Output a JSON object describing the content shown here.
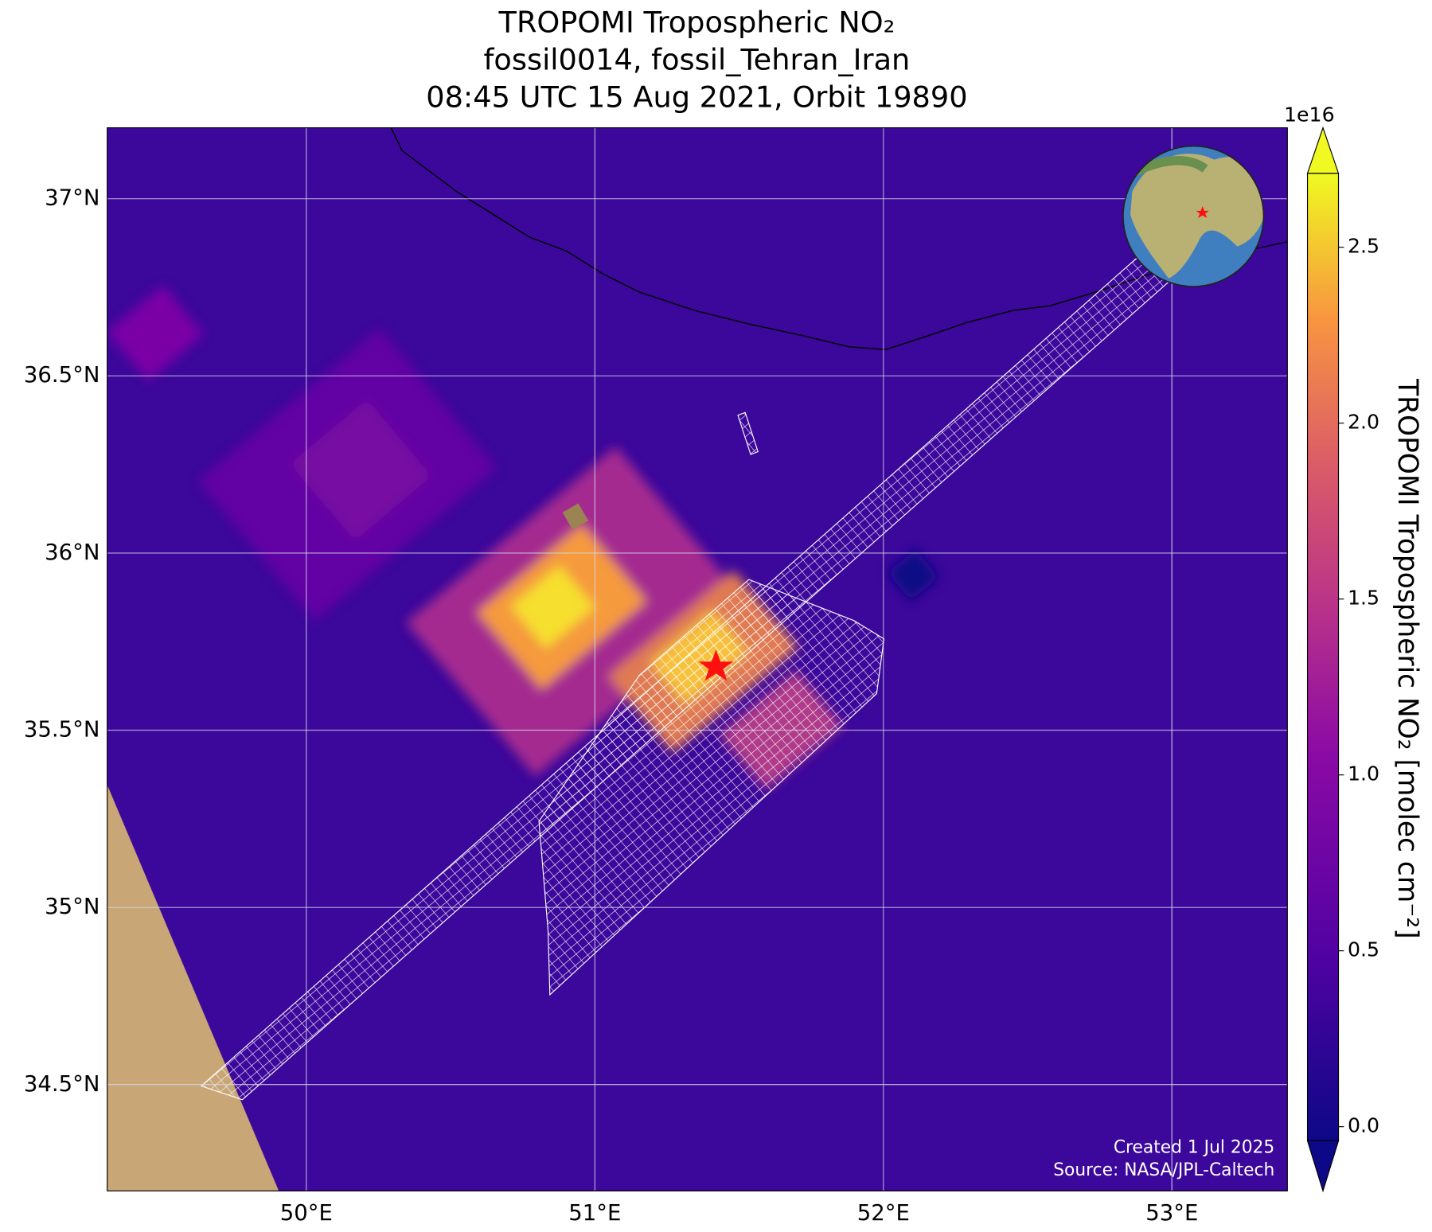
{
  "map": {
    "title": [
      "TROPOMI Tropospheric NO₂",
      "fossil0014, fossil_Tehran_Iran",
      "08:45 UTC 15 Aug 2021, Orbit 19890"
    ],
    "xlim": [
      49.31,
      53.4
    ],
    "ylim": [
      34.2,
      37.2
    ],
    "xticks": [
      {
        "value": 50,
        "label": "50°E"
      },
      {
        "value": 51,
        "label": "51°E"
      },
      {
        "value": 52,
        "label": "52°E"
      },
      {
        "value": 53,
        "label": "53°E"
      }
    ],
    "yticks": [
      {
        "value": 34.5,
        "label": "34.5°N"
      },
      {
        "value": 35,
        "label": "35°N"
      },
      {
        "value": 35.5,
        "label": "35.5°N"
      },
      {
        "value": 36,
        "label": "36°N"
      },
      {
        "value": 36.5,
        "label": "36.5°N"
      },
      {
        "value": 37,
        "label": "37°N"
      }
    ],
    "grid": true,
    "colorbar": {
      "label": "TROPOMI Tropospheric NO₂ [molec cm⁻²]",
      "exponent_label": "1e16",
      "lim": [
        -0.04,
        2.71
      ],
      "ticks": [
        {
          "value": 0,
          "label": "0.0"
        },
        0.5,
        {
          "value": 1,
          "label": "1.0"
        },
        1.5,
        {
          "value": 2,
          "label": "2.0"
        },
        2.5
      ]
    },
    "notes": [
      "Created 1 Jul 2025",
      "Source: NASA/JPL-Caltech"
    ]
  }
}
